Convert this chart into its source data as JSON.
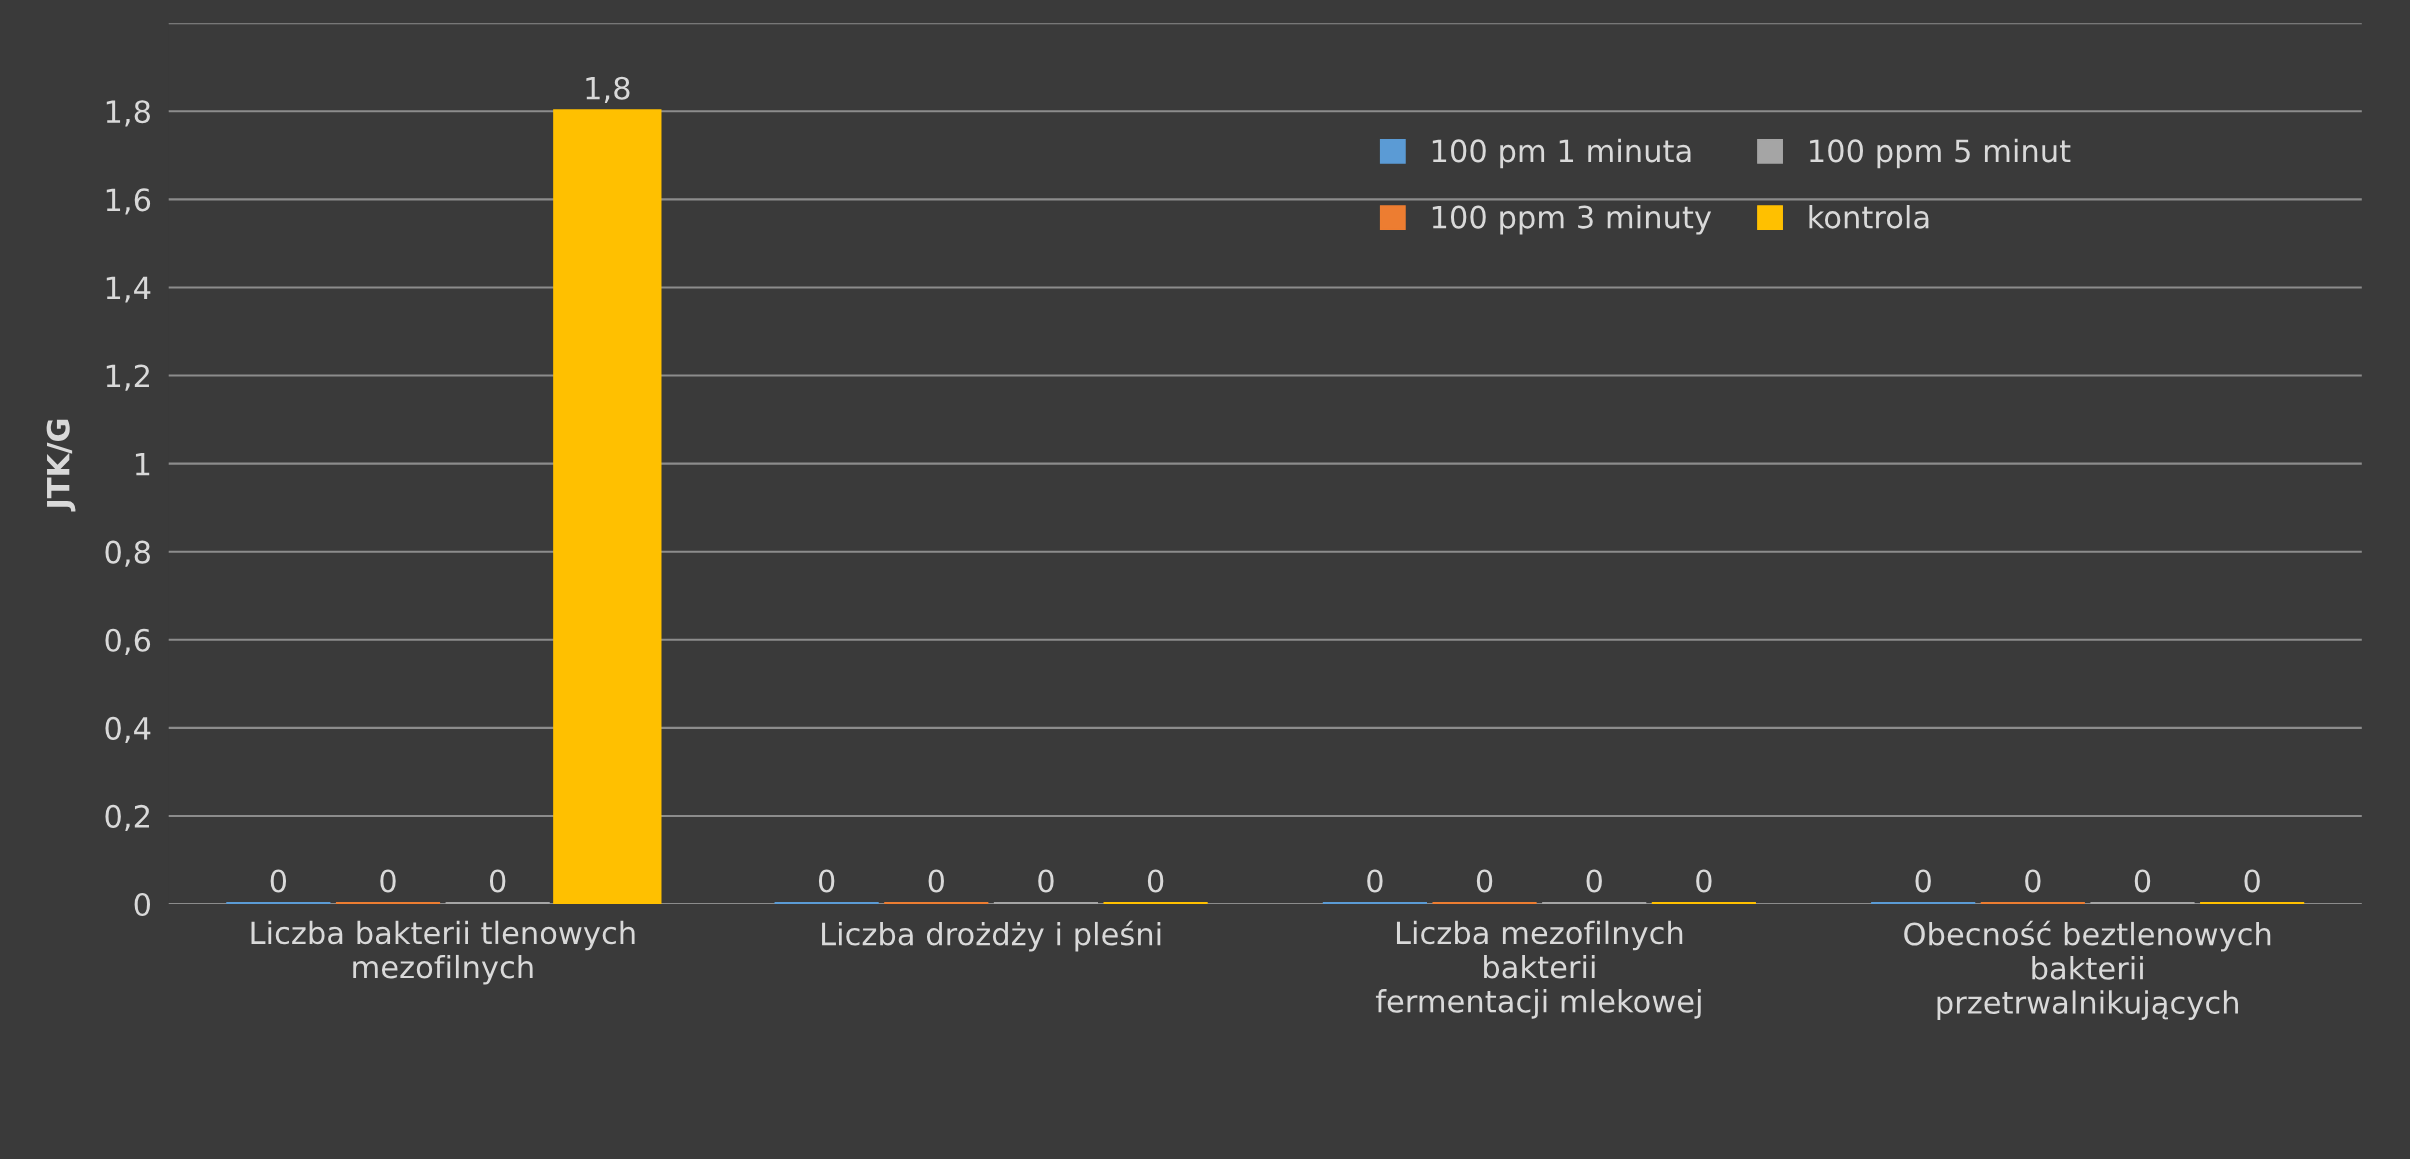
{
  "chart_data": {
    "type": "bar",
    "ylabel": "JTK/G",
    "categories": [
      "Liczba bakterii tlenowych\nmezofilnych",
      "Liczba drożdży i pleśni",
      "Liczba mezofilnych\nbakterii\nfermentacji mlekowej",
      "Obecność beztlenowych\nbakterii\nprzetrwalnikujących"
    ],
    "series": [
      {
        "name": "100 pm 1 minuta",
        "color": "#5b9bd5",
        "values": [
          0,
          0,
          0,
          0
        ],
        "value_labels": [
          "0",
          "0",
          "0",
          "0"
        ]
      },
      {
        "name": "100 ppm 3 minuty",
        "color": "#ed7d31",
        "values": [
          0,
          0,
          0,
          0
        ],
        "value_labels": [
          "0",
          "0",
          "0",
          "0"
        ]
      },
      {
        "name": "100 ppm 5 minut",
        "color": "#a5a5a5",
        "values": [
          0,
          0,
          0,
          0
        ],
        "value_labels": [
          "0",
          "0",
          "0",
          "0"
        ]
      },
      {
        "name": "kontrola",
        "color": "#ffc000",
        "values": [
          1.8,
          0,
          0,
          0
        ],
        "value_labels": [
          "1,8",
          "0",
          "0",
          "0"
        ]
      }
    ],
    "ylim": [
      0,
      2
    ],
    "yticks": [
      0,
      {
        "value": 0.2,
        "label": "0,2"
      },
      {
        "value": 0.4,
        "label": "0,4"
      },
      {
        "value": 0.6,
        "label": "0,6"
      },
      {
        "value": 0.8,
        "label": "0,8"
      },
      1,
      {
        "value": 1.2,
        "label": "1,2"
      },
      {
        "value": 1.4,
        "label": "1,4"
      },
      {
        "value": 1.6,
        "label": "1,6"
      },
      {
        "value": 1.8,
        "label": "1,8"
      },
      {
        "value": 2,
        "label": null
      }
    ],
    "grid": "y",
    "legend": "top right"
  }
}
